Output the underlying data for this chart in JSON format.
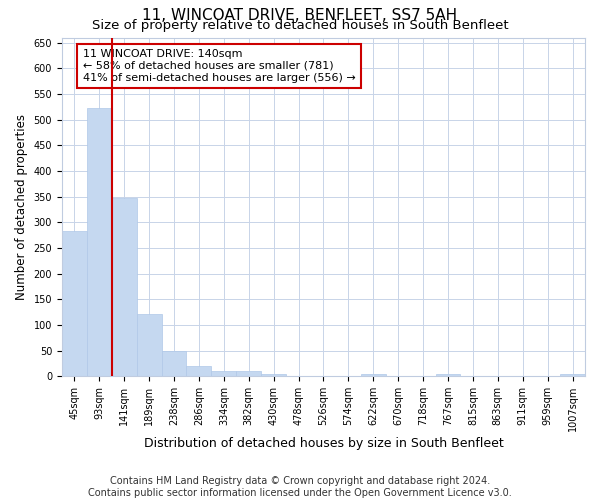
{
  "title": "11, WINCOAT DRIVE, BENFLEET, SS7 5AH",
  "subtitle": "Size of property relative to detached houses in South Benfleet",
  "xlabel": "Distribution of detached houses by size in South Benfleet",
  "ylabel": "Number of detached properties",
  "categories": [
    "45sqm",
    "93sqm",
    "141sqm",
    "189sqm",
    "238sqm",
    "286sqm",
    "334sqm",
    "382sqm",
    "430sqm",
    "478sqm",
    "526sqm",
    "574sqm",
    "622sqm",
    "670sqm",
    "718sqm",
    "767sqm",
    "815sqm",
    "863sqm",
    "911sqm",
    "959sqm",
    "1007sqm"
  ],
  "values": [
    283,
    523,
    348,
    122,
    49,
    20,
    11,
    10,
    5,
    0,
    0,
    0,
    5,
    0,
    0,
    5,
    0,
    0,
    0,
    0,
    5
  ],
  "bar_color": "#c5d8f0",
  "bar_edge_color": "#b0c8e8",
  "vline_x_index": 2,
  "vline_color": "#cc0000",
  "annotation_line1": "11 WINCOAT DRIVE: 140sqm",
  "annotation_line2": "← 58% of detached houses are smaller (781)",
  "annotation_line3": "41% of semi-detached houses are larger (556) →",
  "annotation_box_facecolor": "#ffffff",
  "annotation_box_edgecolor": "#cc0000",
  "ylim": [
    0,
    660
  ],
  "yticks": [
    0,
    50,
    100,
    150,
    200,
    250,
    300,
    350,
    400,
    450,
    500,
    550,
    600,
    650
  ],
  "fig_facecolor": "#ffffff",
  "axes_facecolor": "#ffffff",
  "grid_color": "#c8d4e8",
  "spine_color": "#c0cce0",
  "footer": "Contains HM Land Registry data © Crown copyright and database right 2024.\nContains public sector information licensed under the Open Government Licence v3.0.",
  "title_fontsize": 11,
  "subtitle_fontsize": 9.5,
  "xlabel_fontsize": 9,
  "ylabel_fontsize": 8.5,
  "tick_fontsize": 7,
  "annotation_fontsize": 8,
  "footer_fontsize": 7
}
